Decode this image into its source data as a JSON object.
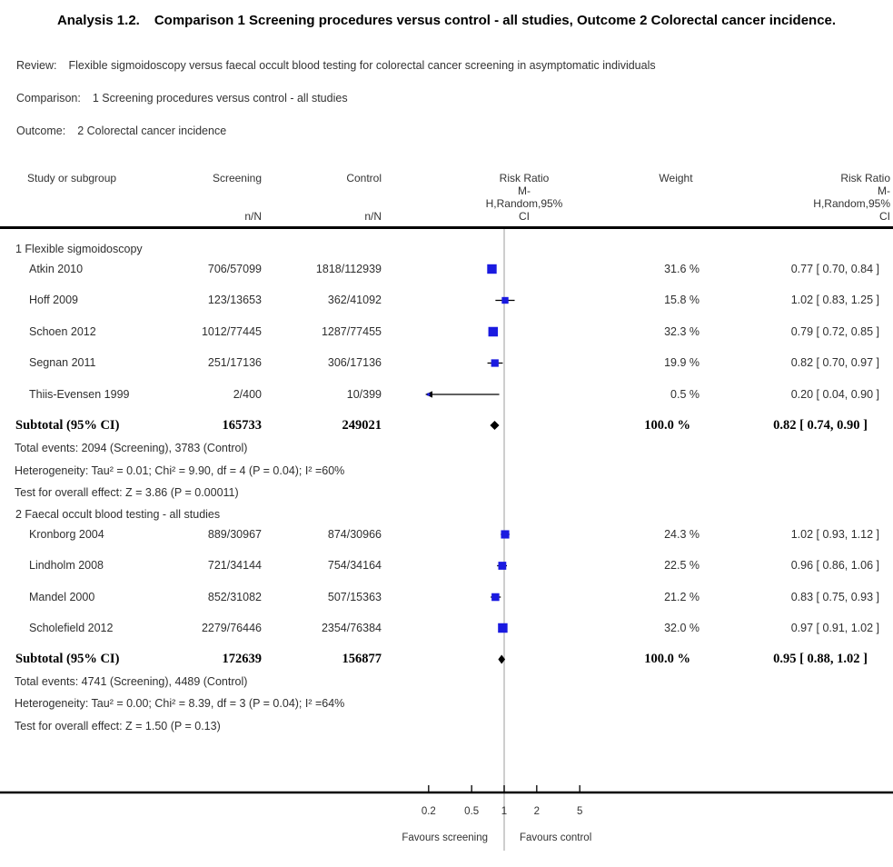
{
  "title": {
    "prefix": "Analysis 1.2.",
    "text": "Comparison 1 Screening procedures versus control - all studies, Outcome 2 Colorectal cancer incidence."
  },
  "meta": {
    "review_label": "Review:",
    "review": "Flexible sigmoidoscopy versus faecal occult blood testing for colorectal cancer screening in asymptomatic individuals",
    "comparison_label": "Comparison:",
    "comparison": "1 Screening procedures versus control - all studies",
    "outcome_label": "Outcome:",
    "outcome": "2 Colorectal cancer incidence"
  },
  "table_headers": {
    "study": "Study or subgroup",
    "screening": "Screening",
    "control": "Control",
    "n_over_N": "n/N",
    "weight": "Weight",
    "risk_ratio_lines": [
      "Risk Ratio",
      "M-",
      "H,Random,95%",
      "CI"
    ]
  },
  "colors": {
    "marker_blue": "#1a1ae0",
    "diamond_black": "#000000",
    "center_line_gray": "#c9c9c9",
    "axis_black": "#000000"
  },
  "chart_data": {
    "type": "scatter",
    "subtype": "forest-plot",
    "x_scale": "log",
    "effect_measure": "Risk Ratio, M-H, Random, 95% CI",
    "tick_labels": [
      "0.2",
      "0.5",
      "1",
      "2",
      "5"
    ],
    "tick_values": [
      0.2,
      0.5,
      1,
      2,
      5
    ],
    "null_line": 1,
    "favours_left": "Favours screening",
    "favours_right": "Favours control",
    "groups": [
      {
        "label": "1 Flexible sigmoidoscopy",
        "studies": [
          {
            "name": "Atkin 2010",
            "screening": "706/57099",
            "control": "1818/112939",
            "rr": 0.77,
            "ci_low": 0.7,
            "ci_high": 0.84,
            "weight_pct": 31.6,
            "weight_text": "31.6 %",
            "rr_text": "0.77 [ 0.70, 0.84 ]"
          },
          {
            "name": "Hoff 2009",
            "screening": "123/13653",
            "control": "362/41092",
            "rr": 1.02,
            "ci_low": 0.83,
            "ci_high": 1.25,
            "weight_pct": 15.8,
            "weight_text": "15.8 %",
            "rr_text": "1.02 [ 0.83, 1.25 ]"
          },
          {
            "name": "Schoen 2012",
            "screening": "1012/77445",
            "control": "1287/77455",
            "rr": 0.79,
            "ci_low": 0.72,
            "ci_high": 0.85,
            "weight_pct": 32.3,
            "weight_text": "32.3 %",
            "rr_text": "0.79 [ 0.72, 0.85 ]"
          },
          {
            "name": "Segnan 2011",
            "screening": "251/17136",
            "control": "306/17136",
            "rr": 0.82,
            "ci_low": 0.7,
            "ci_high": 0.97,
            "weight_pct": 19.9,
            "weight_text": "19.9 %",
            "rr_text": "0.82 [ 0.70, 0.97 ]"
          },
          {
            "name": "Thiis-Evensen 1999",
            "screening": "2/400",
            "control": "10/399",
            "rr": 0.2,
            "ci_low": 0.04,
            "ci_high": 0.9,
            "weight_pct": 0.5,
            "weight_text": "0.5 %",
            "rr_text": "0.20 [ 0.04, 0.90 ]"
          }
        ],
        "subtotal": {
          "label": "Subtotal (95% CI)",
          "screening_total": "165733",
          "control_total": "249021",
          "rr": 0.82,
          "ci_low": 0.74,
          "ci_high": 0.9,
          "weight_text": "100.0 %",
          "rr_text": "0.82 [ 0.74, 0.90 ]"
        },
        "total_events": "Total events: 2094 (Screening), 3783 (Control)",
        "heterogeneity": "Heterogeneity: Tau² = 0.01; Chi² = 9.90, df = 4 (P = 0.04); I² =60%",
        "overall_effect": "Test for overall effect: Z = 3.86 (P = 0.00011)"
      },
      {
        "label": "2 Faecal occult blood testing - all studies",
        "studies": [
          {
            "name": "Kronborg 2004",
            "screening": "889/30967",
            "control": "874/30966",
            "rr": 1.02,
            "ci_low": 0.93,
            "ci_high": 1.12,
            "weight_pct": 24.3,
            "weight_text": "24.3 %",
            "rr_text": "1.02 [ 0.93, 1.12 ]"
          },
          {
            "name": "Lindholm 2008",
            "screening": "721/34144",
            "control": "754/34164",
            "rr": 0.96,
            "ci_low": 0.86,
            "ci_high": 1.06,
            "weight_pct": 22.5,
            "weight_text": "22.5 %",
            "rr_text": "0.96 [ 0.86, 1.06 ]"
          },
          {
            "name": "Mandel 2000",
            "screening": "852/31082",
            "control": "507/15363",
            "rr": 0.83,
            "ci_low": 0.75,
            "ci_high": 0.93,
            "weight_pct": 21.2,
            "weight_text": "21.2 %",
            "rr_text": "0.83 [ 0.75, 0.93 ]"
          },
          {
            "name": "Scholefield 2012",
            "screening": "2279/76446",
            "control": "2354/76384",
            "rr": 0.97,
            "ci_low": 0.91,
            "ci_high": 1.02,
            "weight_pct": 32.0,
            "weight_text": "32.0 %",
            "rr_text": "0.97 [ 0.91, 1.02 ]"
          }
        ],
        "subtotal": {
          "label": "Subtotal (95% CI)",
          "screening_total": "172639",
          "control_total": "156877",
          "rr": 0.95,
          "ci_low": 0.88,
          "ci_high": 1.02,
          "weight_text": "100.0 %",
          "rr_text": "0.95 [ 0.88, 1.02 ]"
        },
        "total_events": "Total events: 4741 (Screening), 4489 (Control)",
        "heterogeneity": "Heterogeneity: Tau² = 0.00; Chi² = 8.39, df = 3 (P = 0.04); I² =64%",
        "overall_effect": "Test for overall effect: Z = 1.50 (P = 0.13)"
      }
    ]
  }
}
